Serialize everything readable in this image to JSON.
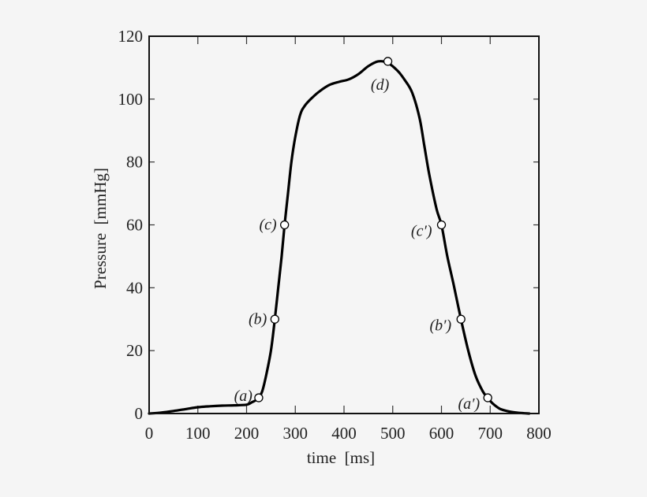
{
  "chart_data": {
    "type": "line",
    "title": "",
    "xlabel": "time [ms]",
    "ylabel": "Pressure [mmHg]",
    "xlim": [
      0,
      800
    ],
    "ylim": [
      0,
      120
    ],
    "xticks": [
      0,
      100,
      200,
      300,
      400,
      500,
      600,
      700,
      800
    ],
    "yticks": [
      0,
      20,
      40,
      60,
      80,
      100,
      120
    ],
    "grid": false,
    "legend": null,
    "series": [
      {
        "name": "pressure",
        "color": "#000000",
        "x": [
          0,
          25,
          50,
          75,
          100,
          125,
          150,
          175,
          200,
          210,
          220,
          225,
          232,
          240,
          250,
          258,
          265,
          272,
          278,
          285,
          292,
          300,
          310,
          320,
          335,
          350,
          370,
          390,
          410,
          430,
          450,
          470,
          490,
          510,
          525,
          540,
          555,
          565,
          575,
          590,
          600,
          612,
          625,
          640,
          655,
          670,
          685,
          695,
          705,
          720,
          740,
          760,
          780
        ],
        "y": [
          0,
          0.3,
          0.8,
          1.4,
          2.0,
          2.3,
          2.5,
          2.6,
          2.8,
          3.5,
          4.3,
          5.0,
          7.0,
          12,
          20,
          30,
          40,
          50,
          60,
          70,
          80,
          88,
          95,
          98,
          100.5,
          102.5,
          104.5,
          105.5,
          106.3,
          108,
          110.5,
          112,
          111.5,
          109,
          106,
          102,
          94,
          85,
          76,
          65,
          60,
          50,
          41,
          30,
          20,
          12,
          7,
          5,
          3.2,
          1.5,
          0.6,
          0.2,
          0
        ]
      }
    ],
    "annotations": [
      {
        "label": "(a)",
        "x": 225,
        "y": 5,
        "marker": "open-circle"
      },
      {
        "label": "(b)",
        "x": 258,
        "y": 30,
        "marker": "open-circle"
      },
      {
        "label": "(c)",
        "x": 278,
        "y": 60,
        "marker": "open-circle"
      },
      {
        "label": "(d)",
        "x": 490,
        "y": 112,
        "marker": "open-circle"
      },
      {
        "label": "(c′)",
        "x": 600,
        "y": 60,
        "marker": "open-circle"
      },
      {
        "label": "(b′)",
        "x": 640,
        "y": 30,
        "marker": "open-circle"
      },
      {
        "label": "(a′)",
        "x": 695,
        "y": 5,
        "marker": "open-circle"
      }
    ]
  },
  "labels": {
    "xlabel": "time  [ms]",
    "ylabel": "Pressure  [mmHg]"
  }
}
